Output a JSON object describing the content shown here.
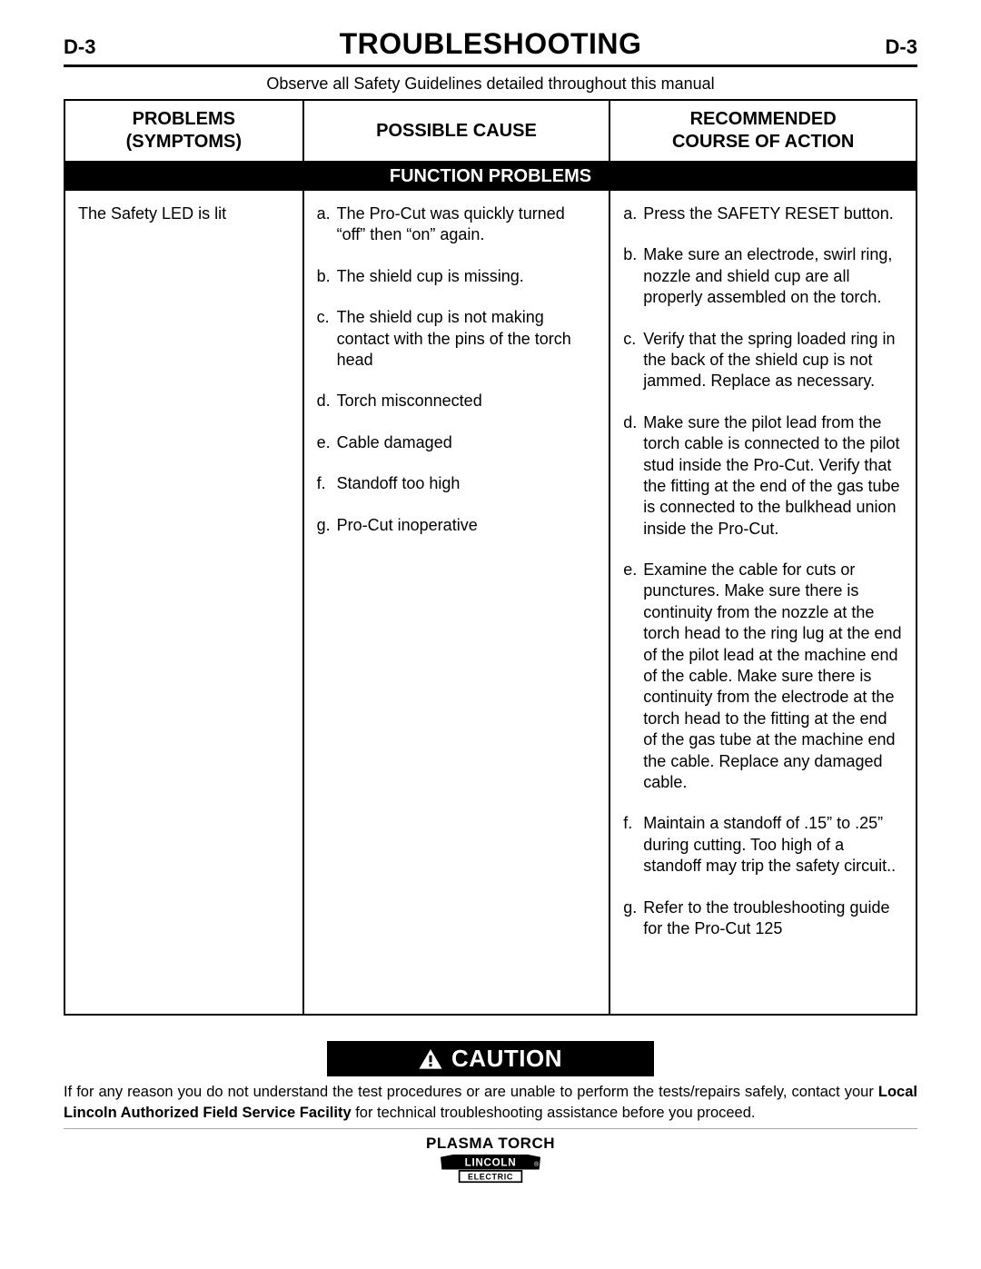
{
  "header": {
    "page_code_left": "D-3",
    "title": "TROUBLESHOOTING",
    "page_code_right": "D-3"
  },
  "safety_note": "Observe all Safety Guidelines detailed throughout this manual",
  "table": {
    "columns": [
      "PROBLEMS\n(SYMPTOMS)",
      "POSSIBLE CAUSE",
      "RECOMMENDED\nCOURSE OF ACTION"
    ],
    "section_title": "FUNCTION PROBLEMS",
    "problem": "The Safety LED is lit",
    "items": [
      {
        "letter": "a.",
        "cause": "The Pro-Cut was quickly turned “off” then “on” again.",
        "action": "Press the SAFETY RESET button."
      },
      {
        "letter": "b.",
        "cause": "The shield cup is missing.",
        "action": "Make sure an electrode, swirl ring, nozzle and shield cup are all properly assembled on the torch."
      },
      {
        "letter": "c.",
        "cause": "The shield cup is not making contact with the pins of the torch head",
        "action": "Verify that the spring loaded ring in the back of the shield cup is not jammed.  Replace as necessary."
      },
      {
        "letter": "d.",
        "cause": "Torch misconnected",
        "action": "Make sure the pilot lead from the torch cable is connected to the pilot stud inside the Pro-Cut.  Verify that the fitting at the end of the gas tube is connected to the bulkhead union inside the Pro-Cut."
      },
      {
        "letter": "e.",
        "cause": "Cable damaged",
        "action": "Examine the cable for cuts or punctures.  Make sure there is continuity from the nozzle at the torch head to the ring lug at the end of the pilot lead at the machine end of the cable.  Make sure there is continuity from the electrode at the torch head to the fitting at the end of the gas tube at the machine end the cable.  Replace any damaged cable."
      },
      {
        "letter": "f.",
        "cause": "Standoff too high",
        "action": "Maintain a standoff of .15” to .25” during cutting.  Too high of a standoff may trip the safety circuit.."
      },
      {
        "letter": "g.",
        "cause": "Pro-Cut inoperative",
        "action": "Refer to the troubleshooting guide for the Pro-Cut 125"
      }
    ]
  },
  "caution": {
    "label": "CAUTION",
    "text_prefix": "If for any reason you do not understand the test procedures or are unable to perform the tests/repairs safely, contact your ",
    "text_bold": "Local Lincoln Authorized Field Service Facility",
    "text_suffix": " for technical troubleshooting assistance before you proceed."
  },
  "footer": {
    "product": "PLASMA TORCH",
    "brand_top": "LINCOLN",
    "brand_bottom": "ELECTRIC"
  },
  "colors": {
    "page_bg": "#ffffff",
    "text": "#000000",
    "section_bg": "#000000",
    "section_fg": "#ffffff"
  }
}
